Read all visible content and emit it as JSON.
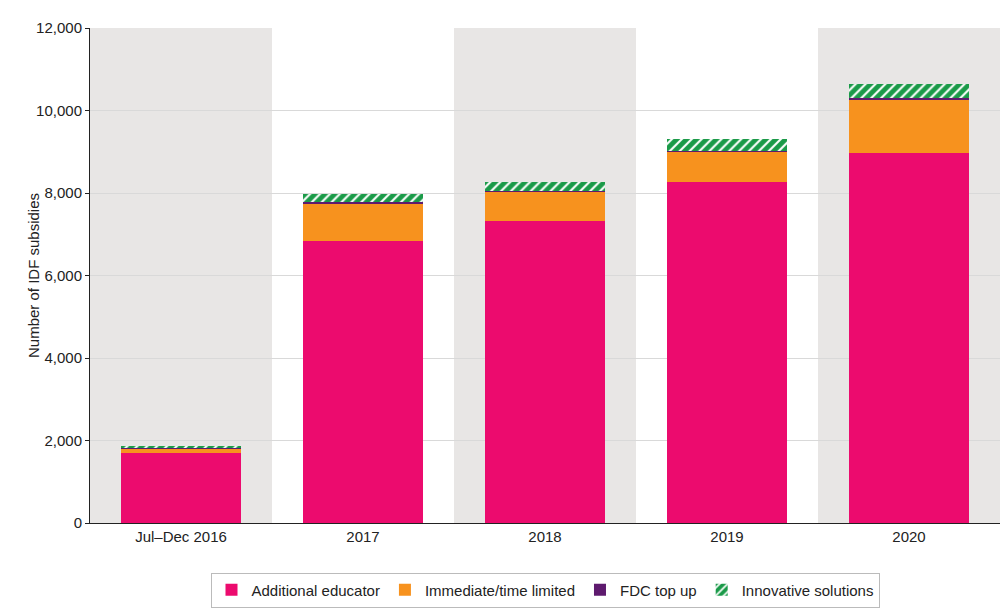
{
  "chart_data": {
    "type": "bar",
    "stacked": true,
    "y_label": "Number of IDF subsidies",
    "categories": [
      "Jul–Dec 2016",
      "2017",
      "2018",
      "2019",
      "2020"
    ],
    "series": [
      {
        "name": "Additional educator",
        "color": "#ec0b6e",
        "values": [
          1690,
          6830,
          7320,
          8260,
          8960
        ]
      },
      {
        "name": "Immediate/time limited",
        "color": "#f7921e",
        "values": [
          110,
          920,
          720,
          750,
          1310
        ]
      },
      {
        "name": "FDC top up",
        "color": "#5e1a6e",
        "values": [
          10,
          30,
          20,
          20,
          40
        ]
      },
      {
        "name": "Innovative solutions",
        "color": "#1a9a48",
        "marker": "hatch",
        "values": [
          60,
          190,
          200,
          290,
          340
        ]
      }
    ],
    "ylim": [
      0,
      12000
    ],
    "yticks": [
      0,
      {
        "value": 2000,
        "label": "2,000"
      },
      {
        "value": 4000,
        "label": "4,000"
      },
      {
        "value": 6000,
        "label": "6,000"
      },
      {
        "value": 8000,
        "label": "8,000"
      },
      {
        "value": 10000,
        "label": "10,000"
      },
      {
        "value": 12000,
        "label": "12,000"
      }
    ],
    "grid": true,
    "legend": "bottom"
  }
}
